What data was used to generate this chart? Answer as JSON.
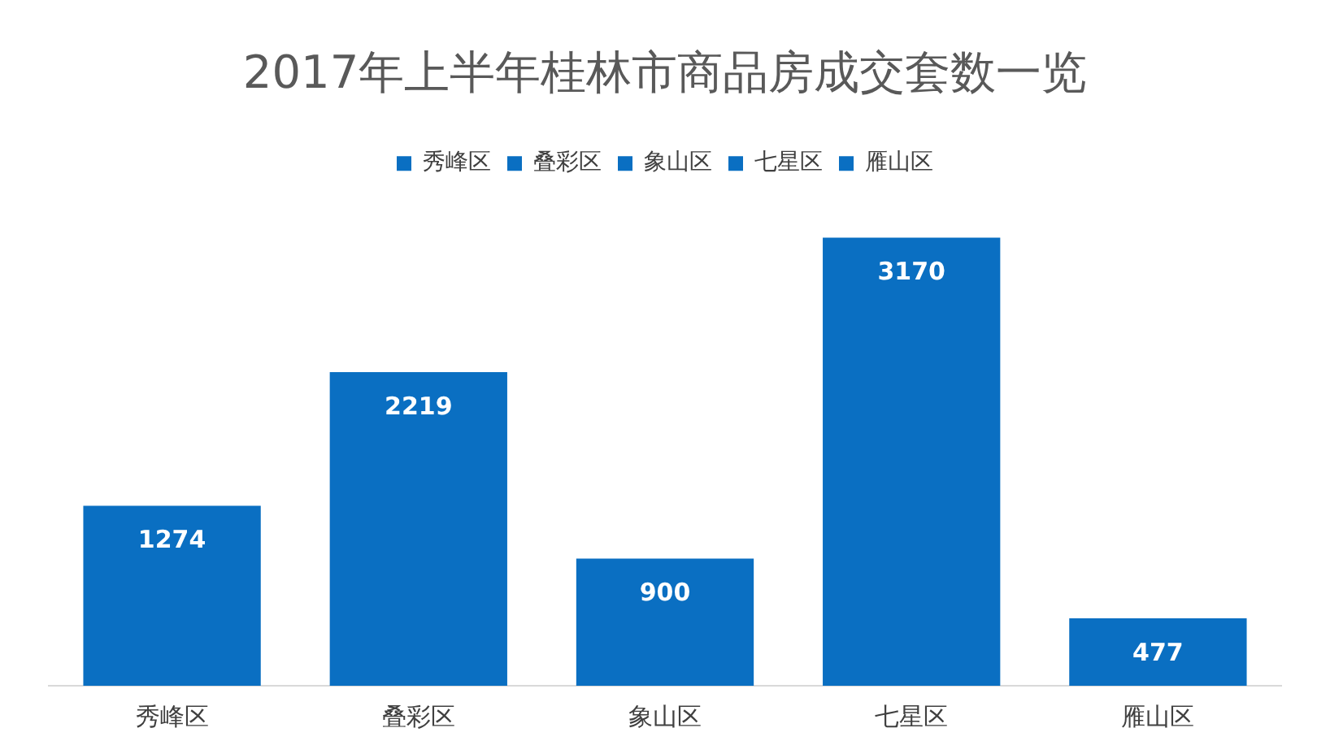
{
  "chart_data": {
    "type": "bar",
    "title": "2017年上半年桂林市商品房成交套数一览",
    "categories": [
      "秀峰区",
      "叠彩区",
      "象山区",
      "七星区",
      "雁山区"
    ],
    "series": [
      {
        "name": "秀峰区",
        "color": "#0a6fc2",
        "values": [
          1274,
          null,
          null,
          null,
          null
        ]
      },
      {
        "name": "叠彩区",
        "color": "#0a6fc2",
        "values": [
          null,
          2219,
          null,
          null,
          null
        ]
      },
      {
        "name": "象山区",
        "color": "#0a6fc2",
        "values": [
          null,
          null,
          900,
          null,
          null
        ]
      },
      {
        "name": "七星区",
        "color": "#0a6fc2",
        "values": [
          null,
          null,
          null,
          3170,
          null
        ]
      },
      {
        "name": "雁山区",
        "color": "#0a6fc2",
        "values": [
          null,
          null,
          null,
          null,
          477
        ]
      }
    ],
    "data_labels": true,
    "legend": "top",
    "grid": false
  }
}
